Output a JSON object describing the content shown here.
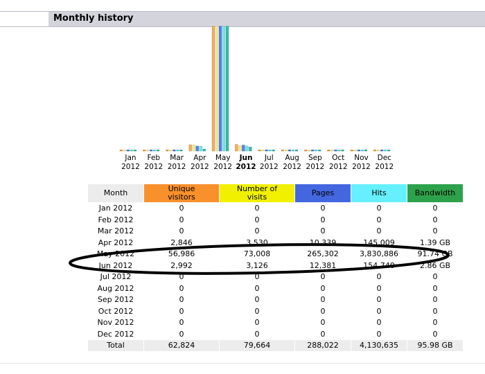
{
  "section": {
    "title": "Monthly history"
  },
  "columns": {
    "month": "Month",
    "unique_visitors": "Unique visitors",
    "number_of_visits": "Number of visits",
    "pages": "Pages",
    "hits": "Hits",
    "bandwidth": "Bandwidth"
  },
  "colors": {
    "unique_visitors": "#f8902c",
    "number_of_visits": "#f0f000",
    "pages": "#4467e0",
    "hits": "#66f0ff",
    "bandwidth": "#2ea14b",
    "header_bg": "#d4d4dc"
  },
  "chart_data": {
    "type": "bar",
    "categories": [
      "Jan 2012",
      "Feb 2012",
      "Mar 2012",
      "Apr 2012",
      "May 2012",
      "Jun 2012",
      "Jul 2012",
      "Aug 2012",
      "Sep 2012",
      "Oct 2012",
      "Nov 2012",
      "Dec 2012"
    ],
    "highlight": "Jun 2012",
    "series": [
      {
        "name": "Unique visitors",
        "values": [
          0,
          0,
          0,
          2846,
          56986,
          2992,
          0,
          0,
          0,
          0,
          0,
          0
        ]
      },
      {
        "name": "Number of visits",
        "values": [
          0,
          0,
          0,
          3530,
          73008,
          3126,
          0,
          0,
          0,
          0,
          0,
          0
        ]
      },
      {
        "name": "Pages",
        "values": [
          0,
          0,
          0,
          10339,
          265302,
          12381,
          0,
          0,
          0,
          0,
          0,
          0
        ]
      },
      {
        "name": "Hits",
        "values": [
          0,
          0,
          0,
          145009,
          3830886,
          154740,
          0,
          0,
          0,
          0,
          0,
          0
        ]
      },
      {
        "name": "Bandwidth",
        "values": [
          0,
          0,
          0,
          1.39,
          91.74,
          2.86,
          0,
          0,
          0,
          0,
          0,
          0
        ]
      }
    ]
  },
  "month_labels": [
    {
      "m": "Jan",
      "y": "2012"
    },
    {
      "m": "Feb",
      "y": "2012"
    },
    {
      "m": "Mar",
      "y": "2012"
    },
    {
      "m": "Apr",
      "y": "2012"
    },
    {
      "m": "May",
      "y": "2012"
    },
    {
      "m": "Jun",
      "y": "2012"
    },
    {
      "m": "Jul",
      "y": "2012"
    },
    {
      "m": "Aug",
      "y": "2012"
    },
    {
      "m": "Sep",
      "y": "2012"
    },
    {
      "m": "Oct",
      "y": "2012"
    },
    {
      "m": "Nov",
      "y": "2012"
    },
    {
      "m": "Dec",
      "y": "2012"
    }
  ],
  "rows": [
    {
      "month": "Jan 2012",
      "uv": "0",
      "nv": "0",
      "pg": "0",
      "hi": "0",
      "bw": "0"
    },
    {
      "month": "Feb 2012",
      "uv": "0",
      "nv": "0",
      "pg": "0",
      "hi": "0",
      "bw": "0"
    },
    {
      "month": "Mar 2012",
      "uv": "0",
      "nv": "0",
      "pg": "0",
      "hi": "0",
      "bw": "0"
    },
    {
      "month": "Apr 2012",
      "uv": "2,846",
      "nv": "3,530",
      "pg": "10,339",
      "hi": "145,009",
      "bw": "1.39 GB"
    },
    {
      "month": "May 2012",
      "uv": "56,986",
      "nv": "73,008",
      "pg": "265,302",
      "hi": "3,830,886",
      "bw": "91.74 GB"
    },
    {
      "month": "Jun 2012",
      "uv": "2,992",
      "nv": "3,126",
      "pg": "12,381",
      "hi": "154,740",
      "bw": "2.86 GB"
    },
    {
      "month": "Jul 2012",
      "uv": "0",
      "nv": "0",
      "pg": "0",
      "hi": "0",
      "bw": "0"
    },
    {
      "month": "Aug 2012",
      "uv": "0",
      "nv": "0",
      "pg": "0",
      "hi": "0",
      "bw": "0"
    },
    {
      "month": "Sep 2012",
      "uv": "0",
      "nv": "0",
      "pg": "0",
      "hi": "0",
      "bw": "0"
    },
    {
      "month": "Oct 2012",
      "uv": "0",
      "nv": "0",
      "pg": "0",
      "hi": "0",
      "bw": "0"
    },
    {
      "month": "Nov 2012",
      "uv": "0",
      "nv": "0",
      "pg": "0",
      "hi": "0",
      "bw": "0"
    },
    {
      "month": "Dec 2012",
      "uv": "0",
      "nv": "0",
      "pg": "0",
      "hi": "0",
      "bw": "0"
    }
  ],
  "total": {
    "label": "Total",
    "uv": "62,824",
    "nv": "79,664",
    "pg": "288,022",
    "hi": "4,130,635",
    "bw": "95.98 GB"
  }
}
